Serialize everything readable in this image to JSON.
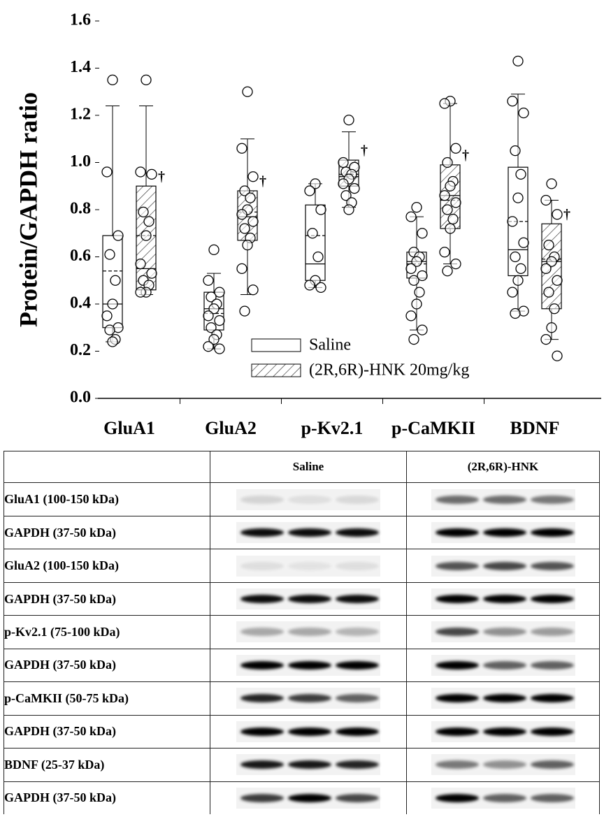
{
  "chart_data": {
    "type": "box",
    "ylabel": "Protein/GAPDH ratio",
    "categories": [
      "GluA1",
      "GluA2",
      "p-Kv2.1",
      "p-CaMKII",
      "BDNF"
    ],
    "ylim": [
      0,
      1.6
    ],
    "yticks": [
      {
        "value": 0,
        "label": "0.0"
      },
      {
        "value": 0.2,
        "label": "0.2"
      },
      {
        "value": 0.4,
        "label": "0.4"
      },
      {
        "value": 0.6,
        "label": "0.6"
      },
      {
        "value": 0.8,
        "label": "0.8"
      },
      {
        "value": 1.0,
        "label": "1.0"
      },
      {
        "value": 1.2,
        "label": "1.2"
      },
      {
        "value": 1.4,
        "label": "1.4"
      },
      {
        "value": 1.6,
        "label": "1.6"
      }
    ],
    "legend": "lower center",
    "series": [
      {
        "name": "Saline",
        "hatch": false,
        "boxes": [
          {
            "whislo": 0.24,
            "q1": 0.3,
            "med": 0.4,
            "mean": 0.54,
            "q3": 0.69,
            "whishi": 1.24,
            "points": [
              1.35,
              0.96,
              0.69,
              0.61,
              0.5,
              0.4,
              0.35,
              0.3,
              0.29,
              0.25,
              0.24
            ]
          },
          {
            "whislo": 0.21,
            "q1": 0.29,
            "med": 0.38,
            "mean": 0.36,
            "q3": 0.45,
            "whishi": 0.53,
            "points": [
              0.63,
              0.5,
              0.45,
              0.43,
              0.4,
              0.38,
              0.35,
              0.33,
              0.3,
              0.27,
              0.25,
              0.22,
              0.21
            ]
          },
          {
            "whislo": 0.47,
            "q1": 0.5,
            "med": 0.57,
            "mean": 0.69,
            "q3": 0.82,
            "whishi": 0.91,
            "points": [
              0.91,
              0.88,
              0.8,
              0.7,
              0.6,
              0.5,
              0.48,
              0.47
            ]
          },
          {
            "whislo": 0.29,
            "q1": 0.51,
            "med": 0.58,
            "mean": 0.57,
            "q3": 0.62,
            "whishi": 0.77,
            "points": [
              0.81,
              0.77,
              0.7,
              0.62,
              0.6,
              0.58,
              0.55,
              0.52,
              0.5,
              0.45,
              0.4,
              0.35,
              0.29,
              0.25
            ]
          },
          {
            "whislo": 0.37,
            "q1": 0.52,
            "med": 0.63,
            "mean": 0.75,
            "q3": 0.98,
            "whishi": 1.29,
            "points": [
              1.43,
              1.26,
              1.21,
              1.05,
              0.95,
              0.85,
              0.75,
              0.66,
              0.6,
              0.55,
              0.5,
              0.45,
              0.37,
              0.36
            ]
          }
        ]
      },
      {
        "name": "(2R,6R)-HNK 20mg/kg",
        "hatch": true,
        "annotations": [
          "†",
          "†",
          "†",
          "†",
          "†"
        ],
        "boxes": [
          {
            "whislo": 0.44,
            "q1": 0.46,
            "med": 0.55,
            "mean": 0.69,
            "q3": 0.9,
            "whishi": 1.24,
            "points": [
              1.35,
              0.96,
              0.95,
              0.79,
              0.75,
              0.69,
              0.57,
              0.53,
              0.5,
              0.48,
              0.45,
              0.45
            ]
          },
          {
            "whislo": 0.44,
            "q1": 0.67,
            "med": 0.77,
            "mean": 0.79,
            "q3": 0.88,
            "whishi": 1.1,
            "points": [
              1.3,
              1.06,
              0.94,
              0.88,
              0.85,
              0.8,
              0.78,
              0.75,
              0.72,
              0.68,
              0.65,
              0.55,
              0.46,
              0.37
            ]
          },
          {
            "whislo": 0.81,
            "q1": 0.9,
            "med": 0.94,
            "mean": 0.95,
            "q3": 1.01,
            "whishi": 1.13,
            "points": [
              1.18,
              1.0,
              0.98,
              0.96,
              0.95,
              0.93,
              0.91,
              0.89,
              0.86,
              0.83,
              0.8
            ]
          },
          {
            "whislo": 0.57,
            "q1": 0.72,
            "med": 0.86,
            "mean": 0.84,
            "q3": 0.99,
            "whishi": 1.25,
            "points": [
              1.26,
              1.25,
              1.06,
              1.0,
              0.92,
              0.9,
              0.86,
              0.83,
              0.8,
              0.76,
              0.72,
              0.62,
              0.57,
              0.54
            ]
          },
          {
            "whislo": 0.25,
            "q1": 0.38,
            "med": 0.58,
            "mean": 0.59,
            "q3": 0.74,
            "whishi": 0.84,
            "points": [
              0.91,
              0.84,
              0.78,
              0.65,
              0.6,
              0.58,
              0.55,
              0.5,
              0.45,
              0.38,
              0.3,
              0.25,
              0.18
            ]
          }
        ]
      }
    ]
  },
  "blot": {
    "header": [
      "Saline",
      "(2R,6R)-HNK"
    ],
    "rows": [
      {
        "target": "GluA1 (100-150 kDa)",
        "control": "GAPDH (37-50 kDa)"
      },
      {
        "target": "GluA2 (100-150 kDa)",
        "control": "GAPDH (37-50 kDa)"
      },
      {
        "target": "p-Kv2.1 (75-100 kDa)",
        "control": "GAPDH (37-50 kDa)"
      },
      {
        "target": "p-CaMKII (50-75 kDa)",
        "control": "GAPDH (37-50 kDa)"
      },
      {
        "target": "BDNF (25-37 kDa)",
        "control": "GAPDH (37-50 kDa)"
      }
    ]
  }
}
